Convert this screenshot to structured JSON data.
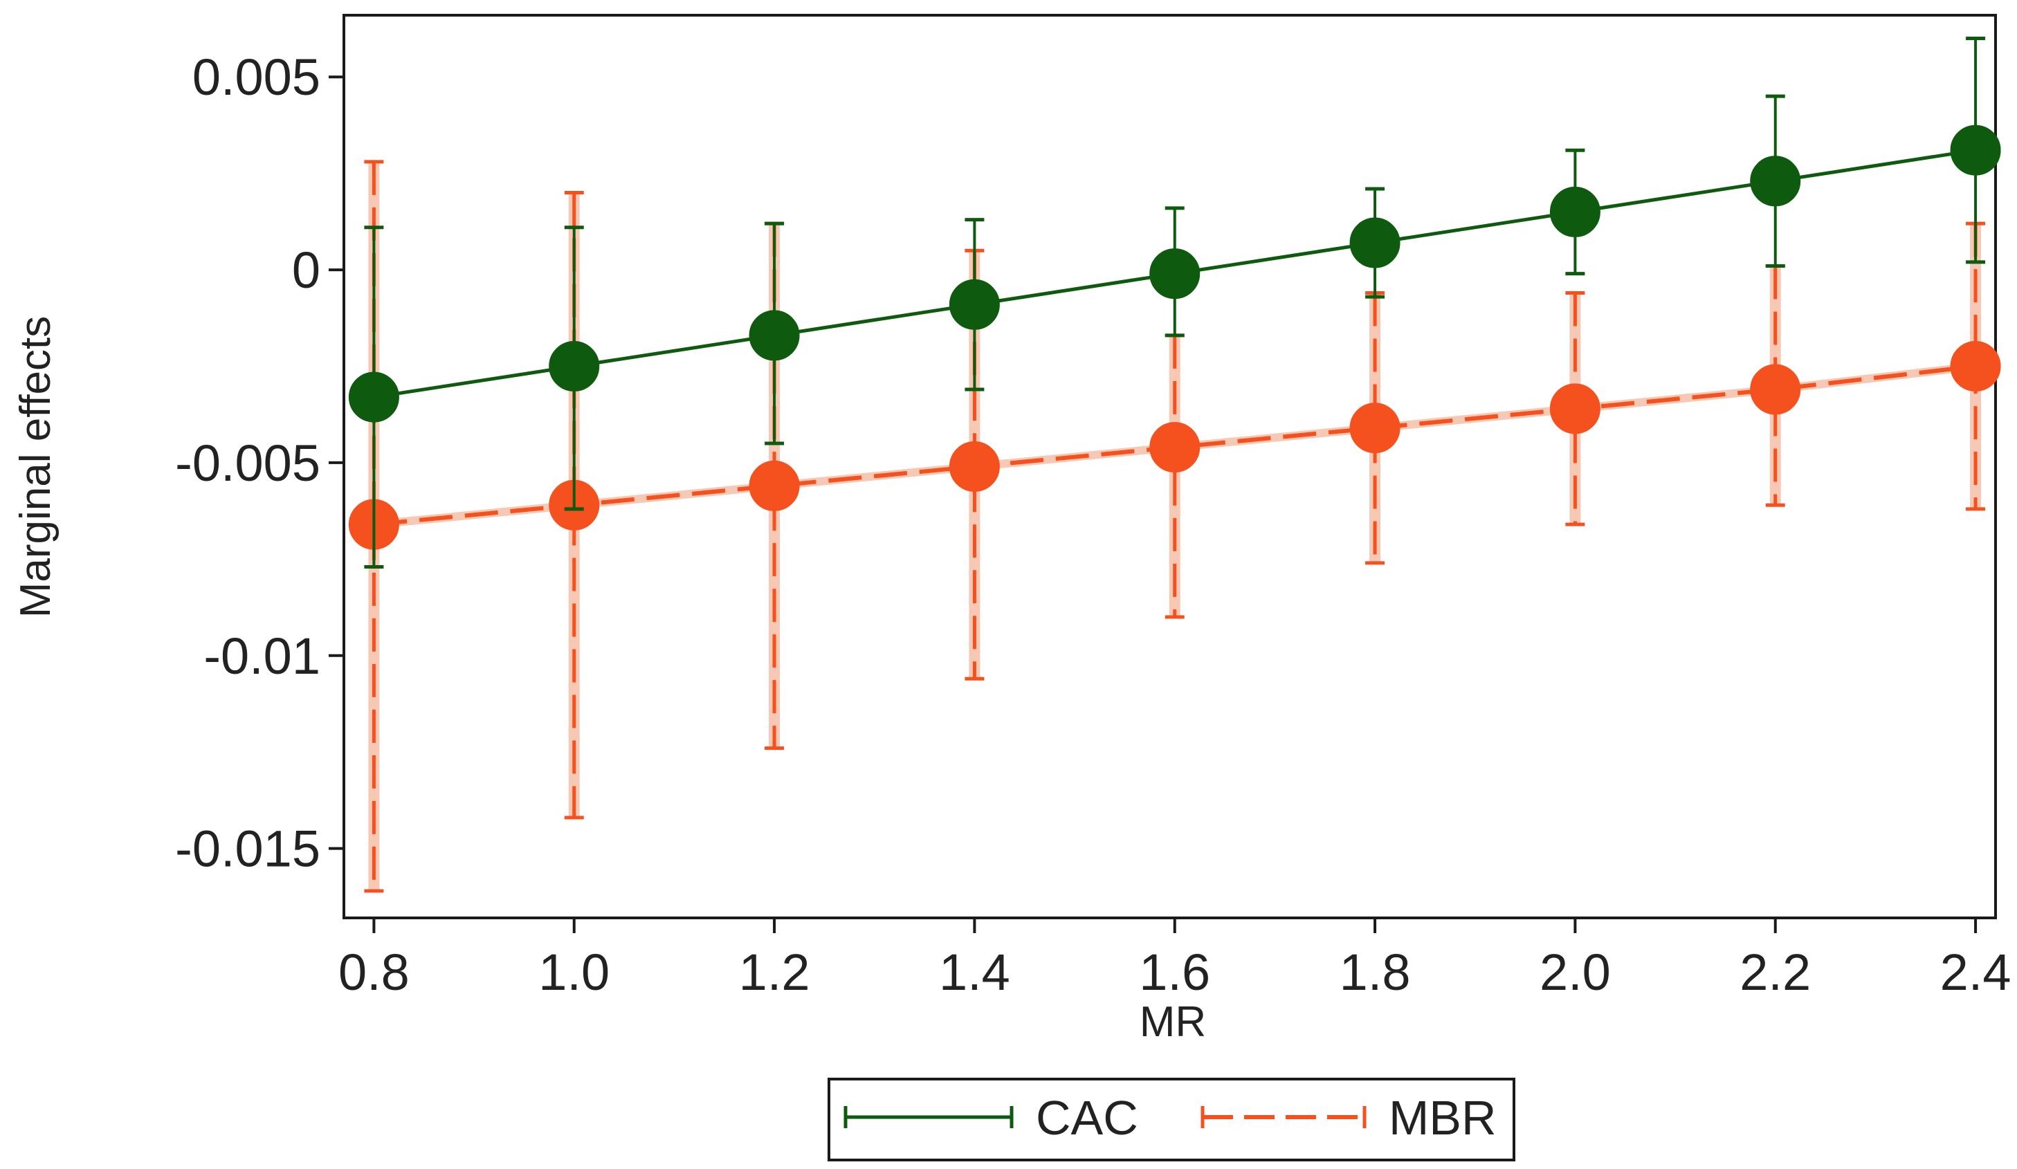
{
  "chart_data": {
    "type": "line",
    "title": "",
    "xlabel": "MR",
    "ylabel": "Marginal effects",
    "x": [
      0.8,
      1.0,
      1.2,
      1.4,
      1.6,
      1.8,
      2.0,
      2.2,
      2.4
    ],
    "x_tick_labels": [
      "0.8",
      "1.0",
      "1.2",
      "1.4",
      "1.6",
      "1.8",
      "2.0",
      "2.2",
      "2.4"
    ],
    "xlim": [
      0.77,
      2.42
    ],
    "ylim": [
      -0.0168,
      0.0066
    ],
    "y_ticks": [
      0.005,
      0,
      -0.005,
      -0.01,
      -0.015
    ],
    "y_tick_labels": [
      "0.005",
      "0",
      "-0.005",
      "-0.01",
      "-0.015"
    ],
    "grid": false,
    "legend_position": "bottom-center",
    "series": [
      {
        "name": "CAC",
        "color": "#0e5a0e",
        "line_style": "solid",
        "values": [
          -0.0033,
          -0.0025,
          -0.0017,
          -0.0009,
          -0.0001,
          0.0007,
          0.0015,
          0.0023,
          0.0031
        ],
        "ci_lower": [
          -0.0077,
          -0.0062,
          -0.0045,
          -0.0031,
          -0.0017,
          -0.0007,
          -0.0001,
          0.0001,
          0.0002
        ],
        "ci_upper": [
          0.0011,
          0.0011,
          0.0012,
          0.0013,
          0.0016,
          0.0021,
          0.0031,
          0.0045,
          0.006
        ]
      },
      {
        "name": "MBR",
        "color": "#f4511e",
        "line_style": "dashed",
        "values": [
          -0.0066,
          -0.0061,
          -0.0056,
          -0.0051,
          -0.0046,
          -0.0041,
          -0.0036,
          -0.0031,
          -0.0025
        ],
        "ci_lower": [
          -0.0161,
          -0.0142,
          -0.0124,
          -0.0106,
          -0.009,
          -0.0076,
          -0.0066,
          -0.0061,
          -0.0062
        ],
        "ci_upper": [
          0.0028,
          0.002,
          0.0012,
          0.0005,
          -0.0017,
          -0.0006,
          -0.0006,
          0.0001,
          0.0012
        ]
      }
    ]
  }
}
